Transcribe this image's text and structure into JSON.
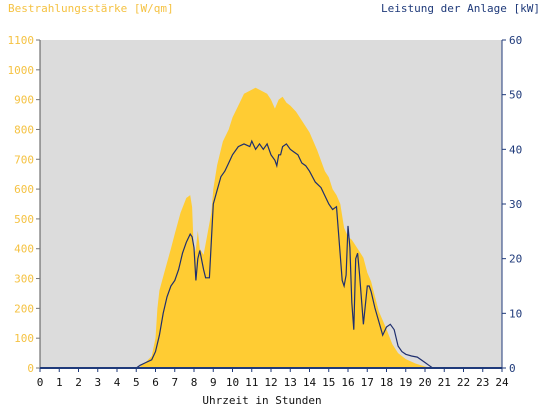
{
  "chart_data": {
    "type": "area",
    "title_left": "Bestrahlungsstärke [W/qm]",
    "title_right": "Leistung der Anlage [kW]",
    "xlabel": "Uhrzeit in Stunden",
    "xlim": [
      0,
      24
    ],
    "ylim_left": [
      0,
      1100
    ],
    "ylim_right": [
      0,
      60
    ],
    "x_ticks": [
      "0",
      "1",
      "2",
      "3",
      "4",
      "5",
      "6",
      "7",
      "8",
      "9",
      "10",
      "11",
      "12",
      "13",
      "14",
      "15",
      "16",
      "17",
      "18",
      "19",
      "20",
      "21",
      "22",
      "23",
      "24"
    ],
    "y_left_ticks": [
      "0",
      "100",
      "200",
      "300",
      "400",
      "500",
      "600",
      "700",
      "800",
      "900",
      "1000",
      "1100"
    ],
    "y_right_ticks": [
      "0",
      "10",
      "20",
      "30",
      "40",
      "50",
      "60"
    ],
    "colors": {
      "irradiance_fill": "#ffcc33",
      "power_line": "#1f2f6e",
      "left_axis_text": "#f5c242",
      "right_axis_text": "#1f3a7a",
      "plot_bg": "#dcdcdc"
    },
    "series": [
      {
        "axis": "left",
        "style": "area",
        "x": [
          0,
          5,
          5.2,
          5.5,
          5.8,
          6.0,
          6.1,
          6.2,
          6.5,
          6.8,
          7.0,
          7.3,
          7.6,
          7.8,
          7.9,
          8.0,
          8.1,
          8.2,
          8.3,
          8.5,
          8.7,
          8.9,
          9.0,
          9.2,
          9.5,
          9.8,
          10.0,
          10.3,
          10.6,
          10.9,
          11.2,
          11.5,
          11.8,
          12.0,
          12.2,
          12.4,
          12.6,
          12.8,
          13.0,
          13.3,
          13.6,
          14.0,
          14.4,
          14.8,
          15.0,
          15.2,
          15.4,
          15.6,
          15.8,
          16.0,
          16.2,
          16.4,
          16.6,
          16.8,
          17.0,
          17.2,
          17.4,
          17.6,
          17.8,
          18.0,
          18.3,
          18.6,
          19.0,
          19.5,
          20.0,
          20.3,
          20.6,
          21,
          24
        ],
        "values": [
          0,
          0,
          5,
          20,
          40,
          100,
          200,
          260,
          330,
          400,
          450,
          520,
          570,
          580,
          540,
          380,
          400,
          460,
          400,
          380,
          450,
          520,
          600,
          680,
          760,
          800,
          840,
          880,
          920,
          930,
          940,
          930,
          920,
          900,
          870,
          900,
          910,
          890,
          880,
          860,
          830,
          790,
          730,
          660,
          640,
          600,
          580,
          550,
          470,
          440,
          430,
          410,
          390,
          370,
          320,
          290,
          240,
          190,
          160,
          130,
          80,
          50,
          30,
          15,
          5,
          0,
          0,
          0,
          0
        ],
        "name": ""
      },
      {
        "axis": "right",
        "style": "line",
        "x": [
          0,
          5,
          5.2,
          5.5,
          5.8,
          6.0,
          6.2,
          6.4,
          6.6,
          6.8,
          7.0,
          7.2,
          7.4,
          7.6,
          7.8,
          7.9,
          8.0,
          8.1,
          8.2,
          8.3,
          8.5,
          8.6,
          8.8,
          9.0,
          9.2,
          9.4,
          9.6,
          9.8,
          10.0,
          10.3,
          10.6,
          10.9,
          11.0,
          11.2,
          11.4,
          11.6,
          11.8,
          12.0,
          12.2,
          12.3,
          12.4,
          12.5,
          12.6,
          12.8,
          13.0,
          13.2,
          13.4,
          13.6,
          13.8,
          14.0,
          14.3,
          14.6,
          15.0,
          15.2,
          15.4,
          15.5,
          15.7,
          15.8,
          15.9,
          16.0,
          16.1,
          16.2,
          16.3,
          16.4,
          16.5,
          16.6,
          16.8,
          17.0,
          17.1,
          17.2,
          17.4,
          17.6,
          17.8,
          18.0,
          18.2,
          18.4,
          18.6,
          18.8,
          19.0,
          19.3,
          19.6,
          20.0,
          20.2,
          20.4,
          21,
          24
        ],
        "values": [
          0,
          0,
          0.5,
          1,
          1.5,
          3,
          6,
          10,
          13,
          15,
          16,
          18,
          21,
          23,
          24.5,
          24,
          22,
          16,
          20,
          21.5,
          18,
          16.5,
          16.5,
          30,
          32.5,
          35,
          36,
          37.5,
          39,
          40.5,
          41,
          40.5,
          41.5,
          40,
          41,
          40,
          41,
          39,
          38,
          37,
          39,
          39,
          40.5,
          41,
          40,
          39.5,
          39,
          37.5,
          37,
          36,
          34,
          33,
          30,
          29,
          29.5,
          25,
          16,
          15,
          17,
          26,
          22,
          12,
          7,
          20,
          21,
          17,
          8,
          15,
          15,
          14,
          11,
          8.5,
          6,
          7.5,
          8,
          7,
          4,
          3,
          2.5,
          2.2,
          2,
          1,
          0.5,
          0,
          0,
          0
        ],
        "name": ""
      }
    ],
    "legend": "none",
    "grid": false
  }
}
